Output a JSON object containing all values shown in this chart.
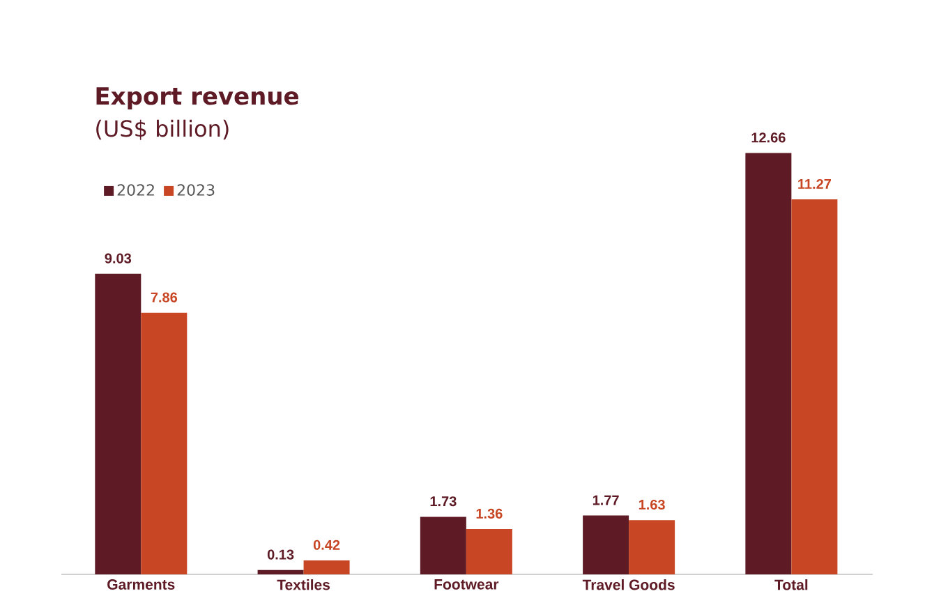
{
  "chart_data": {
    "type": "bar",
    "title": "Export revenue",
    "subtitle": "(US$ billion)",
    "categories": [
      "Garments",
      "Textiles",
      "Footwear",
      "Travel Goods",
      "Total"
    ],
    "series": [
      {
        "name": "2022",
        "color": "#5e1b26",
        "values": [
          9.03,
          0.13,
          1.73,
          1.77,
          12.66
        ]
      },
      {
        "name": "2023",
        "color": "#c84623",
        "values": [
          7.86,
          0.42,
          1.36,
          1.63,
          11.27
        ]
      }
    ],
    "data_labels": true,
    "legend": "top left"
  }
}
